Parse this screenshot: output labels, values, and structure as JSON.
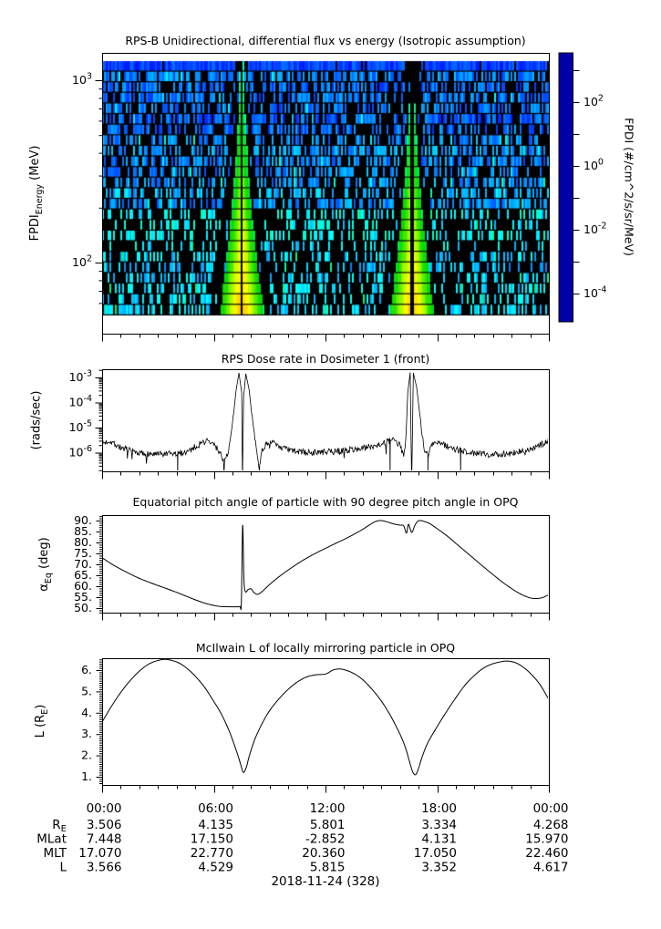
{
  "page": {
    "background": "#ffffff"
  },
  "ephemeris": {
    "time_tick_labels": [
      "00:00",
      "06:00",
      "12:00",
      "18:00",
      "00:00"
    ],
    "time_tick_hours": [
      0,
      6,
      12,
      18,
      24
    ],
    "rows": [
      {
        "label_pre": "R",
        "label_sub": "E",
        "values": [
          "3.506",
          "4.135",
          "5.801",
          "3.334",
          "4.268"
        ]
      },
      {
        "label_pre": "MLat",
        "label_sub": "",
        "values": [
          "7.448",
          "17.150",
          "-2.852",
          "4.131",
          "15.970"
        ]
      },
      {
        "label_pre": "MLT",
        "label_sub": "",
        "values": [
          "17.070",
          "22.770",
          "20.360",
          "17.050",
          "22.460"
        ]
      },
      {
        "label_pre": "L",
        "label_sub": "",
        "values": [
          "3.566",
          "4.529",
          "5.815",
          "3.352",
          "4.617"
        ]
      }
    ],
    "date_label": "2018-11-24 (328)"
  },
  "chart_data": [
    {
      "type": "heatmap",
      "title": "RPS-B  Unidirectional, differential flux vs energy (Isotropic assumption)",
      "ylabel": {
        "pre": "FPDI",
        "sub": "Energy",
        "post": " (MeV)"
      },
      "yscale": "log",
      "x_range_hours": [
        0,
        24
      ],
      "energy_range_mev": [
        52,
        1274
      ],
      "ytick_labeled_exponents": [
        3,
        2
      ],
      "colorbar": {
        "label": "FPDI (#/cm^2/s/sr/MeV)",
        "labeled_exponents": [
          2,
          0,
          -2,
          -4
        ],
        "minor_exponents": [
          3,
          1,
          -1,
          -3
        ],
        "colormap": "rainbow-red-top-blue-bottom"
      },
      "perigee_flux_funnels_hours": [
        7.5,
        16.65
      ],
      "funnel_center_gap_halfwidth_hours": 0.055,
      "n_energy_bins": 24,
      "n_time_columns": 245,
      "noise_seed": 1337,
      "description": "speckled background (black/dark blue/blue/cyan, cyan increasing toward low energy; solid blue top bin) with funnel-shaped green-yellow-orange flux enhancements widening toward low energy at each perigee, thin black data-gap line at funnel centers"
    },
    {
      "type": "line",
      "title": "RPS  Dose rate in Dosimeter 1 (front)",
      "ylabel": "(rads/sec)",
      "yscale": "log",
      "ylim_log10": [
        -6.75,
        -2.67
      ],
      "ytick_labeled_exponents": [
        -3,
        -4,
        -5,
        -6
      ],
      "x_range_hours": [
        0,
        24
      ],
      "envelope_log10_rads_per_sec": [
        [
          0,
          -5.65
        ],
        [
          0.4,
          -5.52
        ],
        [
          1,
          -5.8
        ],
        [
          1.5,
          -5.92
        ],
        [
          2,
          -6.02
        ],
        [
          3,
          -6.08
        ],
        [
          4,
          -6.05
        ],
        [
          4.6,
          -5.95
        ],
        [
          5.1,
          -5.72
        ],
        [
          5.6,
          -5.52
        ],
        [
          6,
          -5.68
        ],
        [
          6.3,
          -5.95
        ],
        [
          6.55,
          -6.35
        ],
        [
          6.8,
          -5.9
        ],
        [
          7,
          -4.9
        ],
        [
          7.2,
          -3.5
        ],
        [
          7.35,
          -2.82
        ],
        [
          7.5,
          -3.6
        ],
        [
          7.54,
          -7.2
        ],
        [
          7.6,
          -3.8
        ],
        [
          7.72,
          -2.85
        ],
        [
          7.9,
          -3.5
        ],
        [
          8.1,
          -4.9
        ],
        [
          8.35,
          -6.1
        ],
        [
          8.45,
          -6.55
        ],
        [
          8.6,
          -5.85
        ],
        [
          9,
          -5.55
        ],
        [
          9.4,
          -5.72
        ],
        [
          10,
          -5.9
        ],
        [
          11,
          -6.0
        ],
        [
          12,
          -5.98
        ],
        [
          13,
          -5.92
        ],
        [
          14,
          -5.82
        ],
        [
          14.8,
          -5.68
        ],
        [
          15.4,
          -5.55
        ],
        [
          15.75,
          -5.5
        ],
        [
          16,
          -5.72
        ],
        [
          16.2,
          -6.15
        ],
        [
          16.32,
          -5.4
        ],
        [
          16.42,
          -3.6
        ],
        [
          16.55,
          -2.8
        ],
        [
          16.63,
          -7.2
        ],
        [
          16.72,
          -2.82
        ],
        [
          16.9,
          -3.4
        ],
        [
          17.1,
          -4.7
        ],
        [
          17.3,
          -5.9
        ],
        [
          17.5,
          -6.1
        ],
        [
          17.7,
          -5.7
        ],
        [
          17.95,
          -5.55
        ],
        [
          18.3,
          -5.68
        ],
        [
          19,
          -5.88
        ],
        [
          20,
          -6.02
        ],
        [
          21,
          -6.08
        ],
        [
          22,
          -6.02
        ],
        [
          23,
          -5.88
        ],
        [
          23.5,
          -5.72
        ],
        [
          24,
          -5.5
        ]
      ],
      "noise_amplitude_decades": 0.13,
      "noise_seed": 7,
      "drop_spikes_hours": [
        4.06,
        8.45,
        15.47,
        17.5,
        19.26
      ]
    },
    {
      "type": "line",
      "title": "Equatorial pitch angle of particle with 90 degree pitch angle in OPQ",
      "ylabel": {
        "pre": "α",
        "sub": "Eq",
        "post": " (deg)"
      },
      "ytick_values": [
        90,
        85,
        80,
        75,
        70,
        65,
        60,
        55,
        50
      ],
      "ytick_labels": [
        "90.",
        "85.",
        "80.",
        "75.",
        "70.",
        "65.",
        "60.",
        "55.",
        "50."
      ],
      "x_range_hours": [
        0,
        24
      ],
      "points_deg": [
        [
          0,
          73
        ],
        [
          0.5,
          70.2
        ],
        [
          1,
          67.8
        ],
        [
          1.5,
          65.6
        ],
        [
          2,
          63.6
        ],
        [
          2.5,
          61.9
        ],
        [
          3,
          60.3
        ],
        [
          3.5,
          58.8
        ],
        [
          4,
          57.2
        ],
        [
          4.5,
          55.5
        ],
        [
          5,
          53.8
        ],
        [
          5.5,
          52.3
        ],
        [
          6,
          51.2
        ],
        [
          6.4,
          50.7
        ],
        [
          6.8,
          50.6
        ],
        [
          7.2,
          50.6
        ],
        [
          7.4,
          50.8
        ],
        [
          7.48,
          52.5
        ],
        [
          7.55,
          88
        ],
        [
          7.62,
          63
        ],
        [
          7.7,
          57.5
        ],
        [
          7.85,
          58.5
        ],
        [
          8,
          58.8
        ],
        [
          8.15,
          57.2
        ],
        [
          8.35,
          56.3
        ],
        [
          8.6,
          57.6
        ],
        [
          9,
          60.8
        ],
        [
          9.5,
          64.3
        ],
        [
          10,
          67.4
        ],
        [
          10.5,
          70.3
        ],
        [
          11,
          72.9
        ],
        [
          11.5,
          75.2
        ],
        [
          12,
          77.3
        ],
        [
          12.5,
          79.4
        ],
        [
          13,
          81.4
        ],
        [
          13.5,
          83.6
        ],
        [
          14,
          86
        ],
        [
          14.4,
          88.2
        ],
        [
          14.7,
          89.6
        ],
        [
          15,
          90
        ],
        [
          15.3,
          89.4
        ],
        [
          15.7,
          88.4
        ],
        [
          16,
          87.9
        ],
        [
          16.2,
          87.6
        ],
        [
          16.35,
          84.3
        ],
        [
          16.45,
          88.3
        ],
        [
          16.55,
          86.2
        ],
        [
          16.65,
          84.6
        ],
        [
          16.8,
          87.8
        ],
        [
          16.95,
          89.6
        ],
        [
          17.1,
          90
        ],
        [
          17.3,
          89.6
        ],
        [
          17.6,
          88.6
        ],
        [
          18,
          86.3
        ],
        [
          18.5,
          83.2
        ],
        [
          19,
          79.6
        ],
        [
          19.5,
          76
        ],
        [
          20,
          72.4
        ],
        [
          20.5,
          68.8
        ],
        [
          21,
          65.3
        ],
        [
          21.5,
          61.9
        ],
        [
          22,
          58.9
        ],
        [
          22.4,
          56.8
        ],
        [
          22.8,
          55.2
        ],
        [
          23.1,
          54.5
        ],
        [
          23.4,
          54.4
        ],
        [
          23.7,
          54.9
        ],
        [
          24,
          56.2
        ]
      ]
    },
    {
      "type": "line",
      "title": "McIlwain L of locally mirroring particle in OPQ",
      "ylabel": {
        "pre": "L (R",
        "sub": "E",
        "post": ")"
      },
      "ytick_values": [
        1,
        2,
        3,
        4,
        5,
        6
      ],
      "ytick_labels": [
        "1.",
        "2.",
        "3.",
        "4.",
        "5.",
        "6."
      ],
      "x_range_hours": [
        0,
        24
      ],
      "points_re": [
        [
          0,
          3.566
        ],
        [
          0.5,
          4.3
        ],
        [
          1,
          4.95
        ],
        [
          1.5,
          5.5
        ],
        [
          2,
          5.95
        ],
        [
          2.5,
          6.28
        ],
        [
          3,
          6.45
        ],
        [
          3.4,
          6.5
        ],
        [
          3.8,
          6.44
        ],
        [
          4.2,
          6.3
        ],
        [
          4.6,
          6.05
        ],
        [
          5,
          5.72
        ],
        [
          5.5,
          5.2
        ],
        [
          6,
          4.529
        ],
        [
          6.4,
          3.95
        ],
        [
          6.8,
          3.2
        ],
        [
          7.1,
          2.5
        ],
        [
          7.35,
          1.85
        ],
        [
          7.5,
          1.4
        ],
        [
          7.6,
          1.2
        ],
        [
          7.75,
          1.45
        ],
        [
          7.9,
          1.95
        ],
        [
          8.2,
          2.75
        ],
        [
          8.6,
          3.5
        ],
        [
          9,
          4.1
        ],
        [
          9.5,
          4.65
        ],
        [
          10,
          5.1
        ],
        [
          10.5,
          5.45
        ],
        [
          11,
          5.68
        ],
        [
          11.5,
          5.78
        ],
        [
          12,
          5.815
        ],
        [
          12.4,
          6.0
        ],
        [
          12.7,
          6.05
        ],
        [
          13,
          6.02
        ],
        [
          13.5,
          5.85
        ],
        [
          14,
          5.55
        ],
        [
          14.5,
          5.1
        ],
        [
          15,
          4.55
        ],
        [
          15.5,
          3.85
        ],
        [
          16,
          3.0
        ],
        [
          16.3,
          2.35
        ],
        [
          16.55,
          1.6
        ],
        [
          16.7,
          1.2
        ],
        [
          16.85,
          1.1
        ],
        [
          17,
          1.4
        ],
        [
          17.2,
          1.95
        ],
        [
          17.5,
          2.6
        ],
        [
          18,
          3.352
        ],
        [
          18.5,
          4.05
        ],
        [
          19,
          4.7
        ],
        [
          19.5,
          5.3
        ],
        [
          20,
          5.75
        ],
        [
          20.5,
          6.1
        ],
        [
          21,
          6.3
        ],
        [
          21.5,
          6.4
        ],
        [
          21.8,
          6.42
        ],
        [
          22.2,
          6.35
        ],
        [
          22.6,
          6.15
        ],
        [
          23,
          5.85
        ],
        [
          23.5,
          5.35
        ],
        [
          24,
          4.617
        ]
      ]
    }
  ]
}
